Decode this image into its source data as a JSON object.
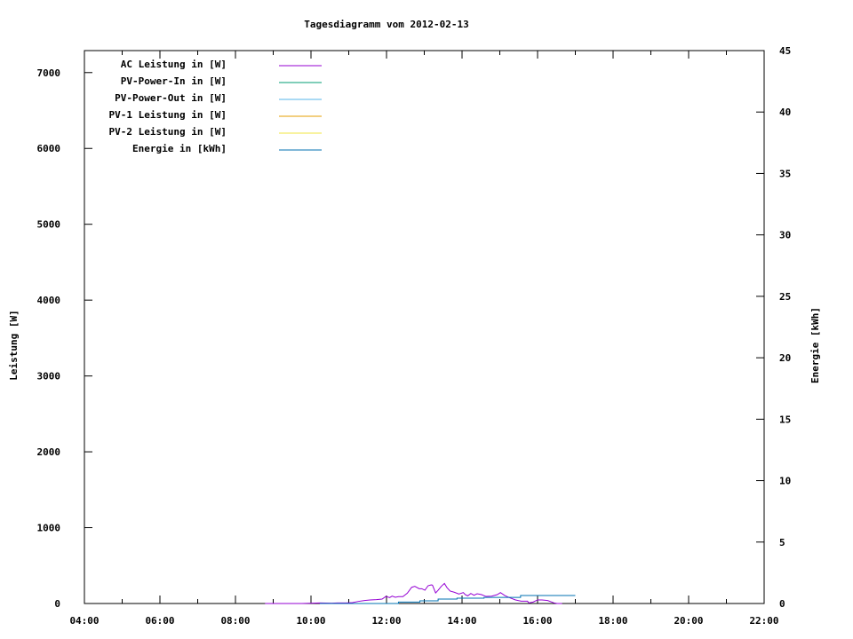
{
  "chart_data": {
    "type": "line",
    "title": "Tagesdiagramm vom 2012-02-13",
    "xlabel": "",
    "ylabel": "Leistung [W]",
    "y2label": "Energie [kWh]",
    "xlim": [
      "04:00",
      "22:00"
    ],
    "ylim": [
      0,
      7290
    ],
    "y2lim": [
      0,
      45
    ],
    "x_ticks": [
      "04:00",
      "06:00",
      "08:00",
      "10:00",
      "12:00",
      "14:00",
      "16:00",
      "18:00",
      "20:00",
      "22:00"
    ],
    "y_ticks": [
      "0",
      "1000",
      "2000",
      "3000",
      "4000",
      "5000",
      "6000",
      "7000"
    ],
    "y2_ticks": [
      "0",
      "5",
      "10",
      "15",
      "20",
      "25",
      "30",
      "35",
      "40",
      "45"
    ],
    "grid": false,
    "legend_position": "top-left",
    "series": [
      {
        "name": "AC Leistung in [W]",
        "axis": "y",
        "color": "#9400d3",
        "points": [
          [
            "08:47",
            0
          ],
          [
            "09:46",
            0
          ],
          [
            "10:14",
            8
          ],
          [
            "10:33",
            4
          ],
          [
            "10:42",
            8
          ],
          [
            "10:56",
            8
          ],
          [
            "11:06",
            12
          ],
          [
            "11:15",
            27
          ],
          [
            "11:25",
            39
          ],
          [
            "11:34",
            47
          ],
          [
            "11:44",
            51
          ],
          [
            "11:53",
            58
          ],
          [
            "11:59",
            93
          ],
          [
            "12:05",
            78
          ],
          [
            "12:09",
            97
          ],
          [
            "12:14",
            82
          ],
          [
            "12:19",
            90
          ],
          [
            "12:26",
            90
          ],
          [
            "12:33",
            136
          ],
          [
            "12:40",
            214
          ],
          [
            "12:45",
            226
          ],
          [
            "12:52",
            195
          ],
          [
            "12:56",
            195
          ],
          [
            "13:01",
            175
          ],
          [
            "13:06",
            234
          ],
          [
            "13:11",
            245
          ],
          [
            "13:13",
            242
          ],
          [
            "13:18",
            140
          ],
          [
            "13:22",
            175
          ],
          [
            "13:27",
            226
          ],
          [
            "13:32",
            265
          ],
          [
            "13:36",
            210
          ],
          [
            "13:41",
            164
          ],
          [
            "13:48",
            148
          ],
          [
            "13:55",
            125
          ],
          [
            "14:02",
            144
          ],
          [
            "14:05",
            117
          ],
          [
            "14:09",
            101
          ],
          [
            "14:14",
            132
          ],
          [
            "14:19",
            109
          ],
          [
            "14:24",
            128
          ],
          [
            "14:31",
            117
          ],
          [
            "14:38",
            93
          ],
          [
            "14:47",
            97
          ],
          [
            "14:56",
            117
          ],
          [
            "15:01",
            144
          ],
          [
            "15:08",
            105
          ],
          [
            "15:15",
            78
          ],
          [
            "15:25",
            47
          ],
          [
            "15:34",
            31
          ],
          [
            "15:44",
            31
          ],
          [
            "15:46",
            8
          ],
          [
            "15:53",
            19
          ],
          [
            "16:00",
            47
          ],
          [
            "16:07",
            47
          ],
          [
            "16:16",
            39
          ],
          [
            "16:26",
            8
          ],
          [
            "16:31",
            0
          ],
          [
            "16:39",
            0
          ]
        ]
      },
      {
        "name": "PV-Power-In in [W]",
        "axis": "y",
        "color": "#009e73",
        "points": []
      },
      {
        "name": "PV-Power-Out in [W]",
        "axis": "y",
        "color": "#56b4e9",
        "points": []
      },
      {
        "name": "PV-1 Leistung in [W]",
        "axis": "y",
        "color": "#e69f00",
        "points": []
      },
      {
        "name": "PV-2 Leistung in [W]",
        "axis": "y",
        "color": "#f0e442",
        "points": []
      },
      {
        "name": "Energie in [kWh]",
        "axis": "y2",
        "color": "#0072b2",
        "step": true,
        "points": [
          [
            "10:14",
            0
          ],
          [
            "12:19",
            0.12
          ],
          [
            "12:53",
            0.22
          ],
          [
            "13:22",
            0.36
          ],
          [
            "13:52",
            0.43
          ],
          [
            "14:35",
            0.5
          ],
          [
            "15:33",
            0.65
          ],
          [
            "17:00",
            0.65
          ]
        ]
      }
    ]
  }
}
